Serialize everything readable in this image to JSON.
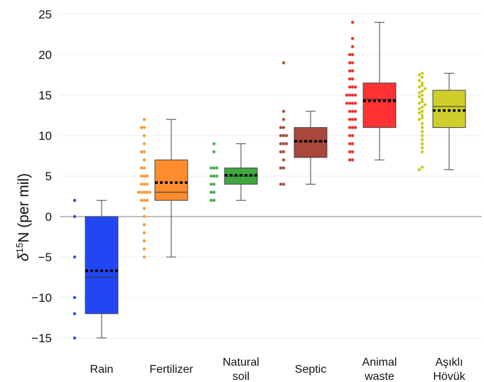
{
  "chart_data": {
    "type": "box",
    "ylabel": {
      "prefix": "δ",
      "sup": "15",
      "suffix": "N (per mil)"
    },
    "ylim": [
      -16,
      26
    ],
    "yticks": [
      -15,
      -10,
      -5,
      0,
      5,
      10,
      15,
      20,
      25
    ],
    "grid": "horizontal",
    "zero_line": true,
    "categories": [
      {
        "lines": [
          "Rain"
        ]
      },
      {
        "lines": [
          "Fertilizer"
        ]
      },
      {
        "lines": [
          "Natural",
          "soil"
        ]
      },
      {
        "lines": [
          "Septic"
        ]
      },
      {
        "lines": [
          "Animal",
          "waste"
        ]
      },
      {
        "lines": [
          "Aşıklı",
          "Hövük"
        ]
      }
    ],
    "series": [
      {
        "color": "#2147f5",
        "dot_color": "#3050e0",
        "min": -15,
        "q1": -12,
        "median": -7.5,
        "mean": -6.7,
        "q3": 0,
        "max": 2,
        "points": [
          2,
          0,
          -5,
          -10,
          -12,
          -15
        ]
      },
      {
        "color": "#ff8c2e",
        "dot_color": "#ff9a3c",
        "min": -5,
        "q1": 2,
        "median": 3,
        "mean": 4.2,
        "q3": 7,
        "max": 12,
        "points": [
          12,
          11,
          11,
          10,
          9,
          8,
          8,
          7,
          6,
          6,
          5,
          5,
          5,
          4,
          4,
          4,
          3,
          3,
          3,
          3,
          3,
          2,
          2,
          2,
          1,
          0,
          -1,
          -2,
          -3,
          -4,
          -5
        ]
      },
      {
        "color": "#3fa73f",
        "dot_color": "#4caf50",
        "min": 2,
        "q1": 4,
        "median": 5,
        "mean": 5.1,
        "q3": 6,
        "max": 9,
        "points": [
          9,
          8,
          6,
          6,
          6,
          5,
          5,
          5,
          4,
          4,
          3,
          3,
          2,
          2
        ]
      },
      {
        "color": "#a9473a",
        "dot_color": "#a85040",
        "min": 4,
        "q1": 7.3,
        "median": 9.3,
        "mean": 9.3,
        "q3": 11,
        "max": 13,
        "points": [
          19,
          13,
          12,
          11,
          11,
          10,
          10,
          10,
          9,
          9,
          9,
          8,
          8,
          7,
          6,
          6,
          4,
          4
        ]
      },
      {
        "color": "#ff3333",
        "dot_color": "#ee3333",
        "min": 7,
        "q1": 11,
        "median": 14.5,
        "mean": 14.3,
        "q3": 16.5,
        "max": 24,
        "points": [
          24,
          22,
          21,
          20,
          20,
          19,
          19,
          18,
          18,
          17,
          17,
          16,
          16,
          16,
          15,
          15,
          15,
          15,
          14,
          14,
          14,
          14,
          13,
          13,
          13,
          12,
          12,
          12,
          11,
          11,
          11,
          10,
          10,
          9,
          9,
          8,
          8,
          7,
          7
        ]
      },
      {
        "color": "#cfcf2c",
        "dot_color": "#c9c925",
        "min": 5.8,
        "q1": 11,
        "median": 13.6,
        "mean": 13.1,
        "q3": 15.6,
        "max": 17.7,
        "points": [
          17.7,
          17.5,
          17.2,
          16.8,
          16.5,
          16.2,
          16.0,
          15.8,
          15.5,
          15.3,
          15.0,
          14.8,
          14.5,
          14.2,
          14.0,
          13.8,
          13.5,
          13.3,
          13.0,
          12.8,
          12.5,
          12.2,
          12.0,
          11.5,
          11.0,
          10.5,
          10.0,
          9.5,
          9.0,
          8.5,
          8.0,
          6.1,
          5.8
        ]
      }
    ]
  }
}
